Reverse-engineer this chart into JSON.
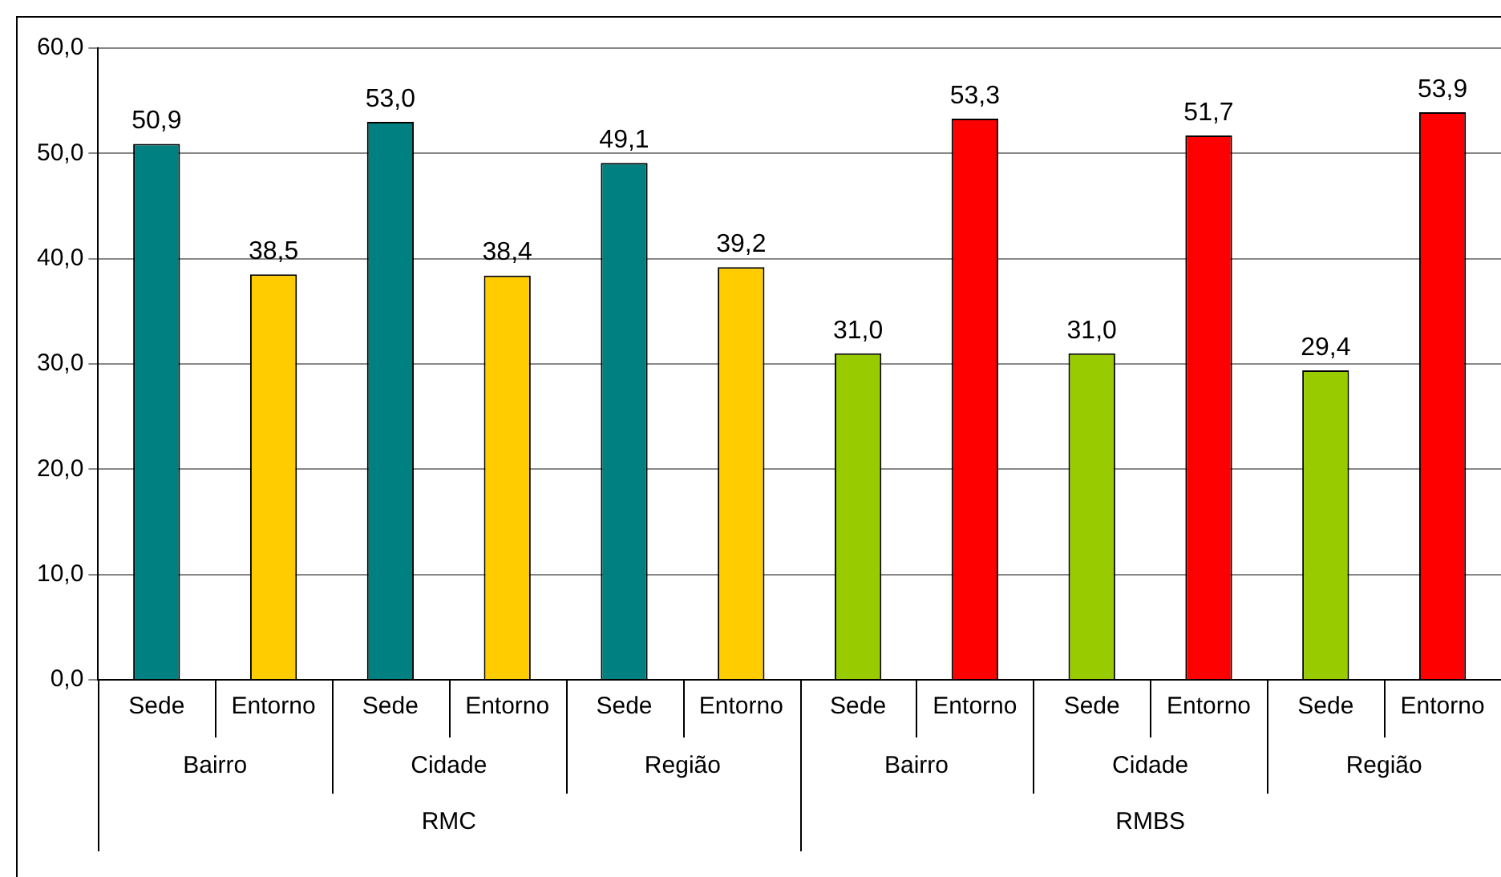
{
  "chart_data": {
    "type": "bar",
    "categories": [
      "Sede",
      "Entorno",
      "Sede",
      "Entorno",
      "Sede",
      "Entorno",
      "Sede",
      "Entorno",
      "Sede",
      "Entorno",
      "Sede",
      "Entorno"
    ],
    "values": [
      50.9,
      38.5,
      53.0,
      38.4,
      49.1,
      39.2,
      31.0,
      53.3,
      31.0,
      51.7,
      29.4,
      53.9
    ],
    "value_labels": [
      "50,9",
      "38,5",
      "53,0",
      "38,4",
      "49,1",
      "39,2",
      "31,0",
      "53,3",
      "31,0",
      "51,7",
      "29,4",
      "53,9"
    ],
    "colors": [
      "#008080",
      "#ffcc00",
      "#008080",
      "#ffcc00",
      "#008080",
      "#ffcc00",
      "#99cc00",
      "#ff0000",
      "#99cc00",
      "#ff0000",
      "#99cc00",
      "#ff0000"
    ],
    "ylim": [
      0,
      60
    ],
    "yticks": [
      {
        "value": 0,
        "label": "0,0"
      },
      {
        "value": 10,
        "label": "10,0"
      },
      {
        "value": 20,
        "label": "20,0"
      },
      {
        "value": 30,
        "label": "30,0"
      },
      {
        "value": 40,
        "label": "40,0"
      },
      {
        "value": 50,
        "label": "50,0"
      },
      {
        "value": 60,
        "label": "60,0"
      }
    ],
    "grid": "y",
    "legend": false,
    "annotations": [
      "Bairro",
      "Cidade",
      "Região",
      "Bairro",
      "Cidade",
      "Região",
      "RMC",
      "RMBS"
    ]
  }
}
